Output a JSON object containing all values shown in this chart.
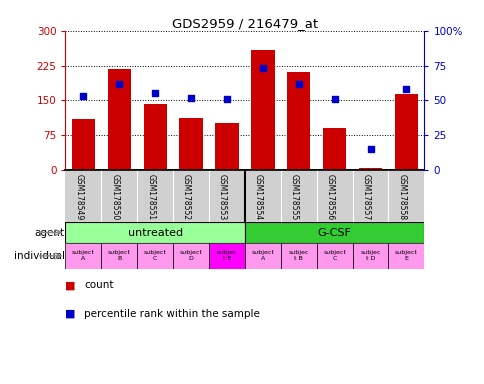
{
  "title": "GDS2959 / 216479_at",
  "samples": [
    "GSM178549",
    "GSM178550",
    "GSM178551",
    "GSM178552",
    "GSM178553",
    "GSM178554",
    "GSM178555",
    "GSM178556",
    "GSM178557",
    "GSM178558"
  ],
  "counts": [
    110,
    218,
    143,
    112,
    100,
    258,
    210,
    90,
    5,
    163
  ],
  "percentiles": [
    53,
    62,
    55,
    52,
    51,
    73,
    62,
    51,
    15,
    58
  ],
  "ylim_left": [
    0,
    300
  ],
  "ylim_right": [
    0,
    100
  ],
  "yticks_left": [
    0,
    75,
    150,
    225,
    300
  ],
  "yticks_right": [
    0,
    25,
    50,
    75,
    100
  ],
  "bar_color": "#cc0000",
  "dot_color": "#0000cc",
  "agent_groups": [
    {
      "label": "untreated",
      "start": 0,
      "end": 5,
      "color": "#99ff99"
    },
    {
      "label": "G-CSF",
      "start": 5,
      "end": 10,
      "color": "#33cc33"
    }
  ],
  "ind_labels": [
    "subject\nA",
    "subject\nB",
    "subject\nC",
    "subject\nD",
    "subjec\nt E",
    "subject\nA",
    "subjec\nt B",
    "subject\nC",
    "subjec\nt D",
    "subject\nE"
  ],
  "ind_highlight": [
    false,
    false,
    false,
    false,
    true,
    false,
    false,
    false,
    false,
    false
  ],
  "ind_color_normal": "#ff99ee",
  "ind_color_highlight": "#ff00ff",
  "xtick_bg": "#d0d0d0",
  "agent_label": "agent",
  "individual_label": "individual",
  "bar_color_legend": "#cc0000",
  "dot_color_legend": "#0000cc",
  "bg_color": "#ffffff",
  "axis_color_left": "#cc0000",
  "axis_color_right": "#0000cc"
}
